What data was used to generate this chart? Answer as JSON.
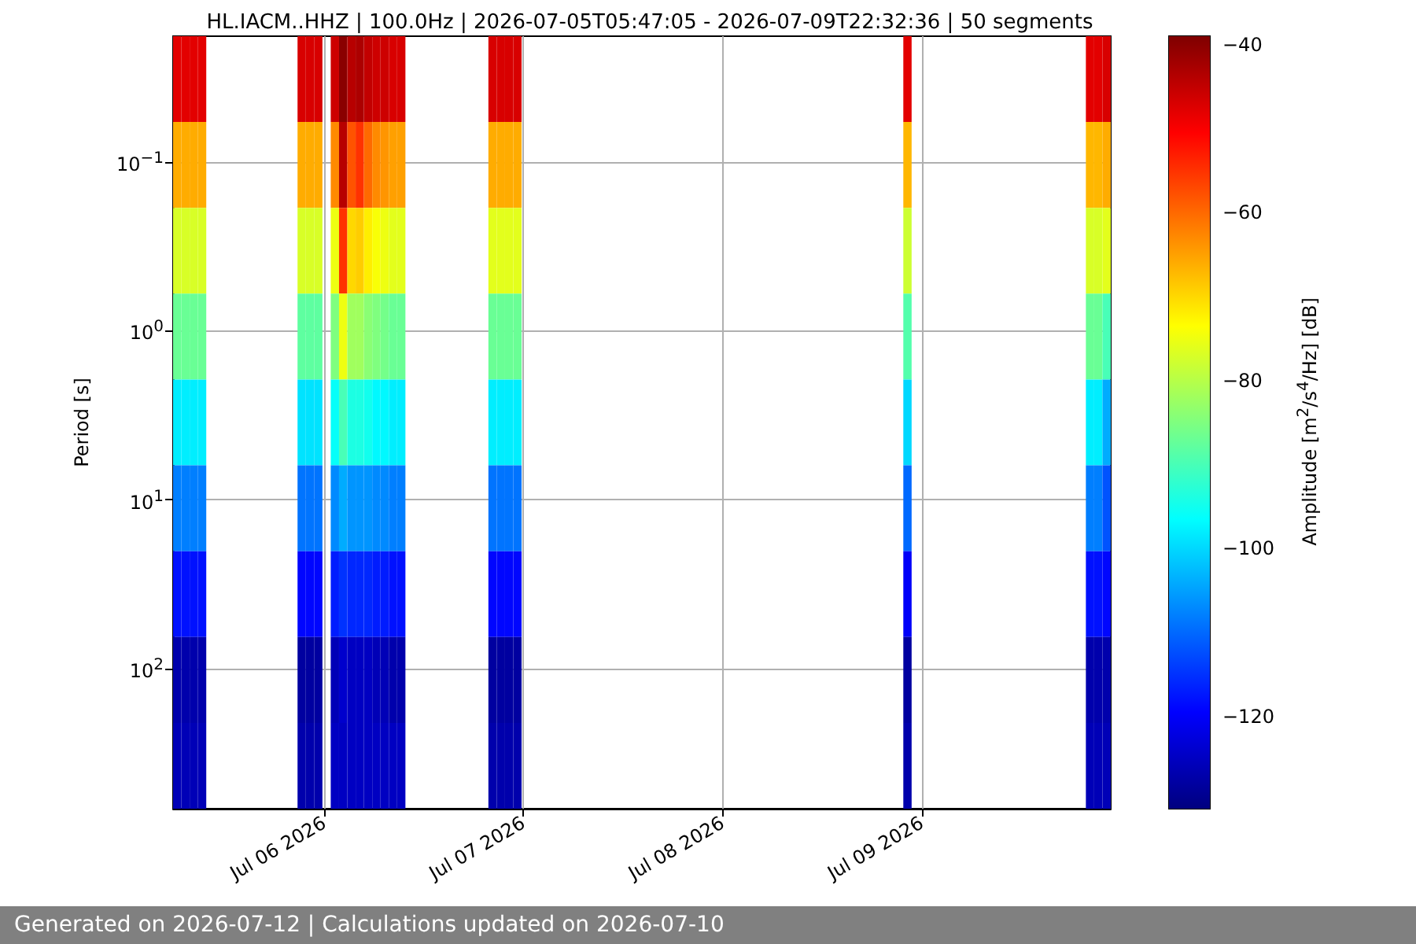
{
  "chart_data": {
    "type": "heatmap",
    "title": "HL.IACM..HHZ | 100.0Hz | 2026-07-05T05:47:05 - 2026-07-09T22:32:36 | 50 segments",
    "ylabel": "Period [s]",
    "clabel": "Amplitude [m$^{2}$/s$^{4}$/Hz] [dB]",
    "annotations": [
      "Generated on 2026-07-12 | Calculations updated on 2026-07-10"
    ],
    "x": [
      "2026-07-05T06:17",
      "2026-07-05T07:17",
      "2026-07-05T08:17",
      "2026-07-05T09:17",
      "2026-07-05T10:17",
      "2026-07-05T11:17",
      "2026-07-05T12:17",
      "2026-07-05T13:17",
      "2026-07-05T14:17",
      "2026-07-05T15:17",
      "2026-07-05T16:17",
      "2026-07-05T17:17",
      "2026-07-05T18:17",
      "2026-07-05T19:17",
      "2026-07-05T20:17",
      "2026-07-05T21:17",
      "2026-07-05T22:17",
      "2026-07-05T23:17",
      "2026-07-06T00:17",
      "2026-07-06T01:17",
      "2026-07-06T02:17",
      "2026-07-06T03:17",
      "2026-07-06T04:17",
      "2026-07-06T05:17",
      "2026-07-06T06:17",
      "2026-07-06T07:17",
      "2026-07-06T08:17",
      "2026-07-06T09:17",
      "2026-07-06T10:17",
      "2026-07-06T11:17",
      "2026-07-06T12:17",
      "2026-07-06T13:17",
      "2026-07-06T14:17",
      "2026-07-06T15:17",
      "2026-07-06T16:17",
      "2026-07-06T17:17",
      "2026-07-06T18:17",
      "2026-07-06T19:17",
      "2026-07-06T20:17",
      "2026-07-06T21:17",
      "2026-07-06T22:17",
      "2026-07-06T23:17",
      "2026-07-07T00:17",
      "2026-07-07T01:17",
      "2026-07-07T02:17",
      "2026-07-07T03:17",
      "2026-07-07T04:17",
      "2026-07-07T05:17",
      "2026-07-07T06:17",
      "2026-07-07T07:17",
      "2026-07-07T08:17",
      "2026-07-07T09:17",
      "2026-07-07T10:17",
      "2026-07-07T11:17",
      "2026-07-07T12:17",
      "2026-07-07T13:17",
      "2026-07-07T14:17",
      "2026-07-07T15:17",
      "2026-07-07T16:17",
      "2026-07-07T17:17",
      "2026-07-07T18:17",
      "2026-07-07T19:17",
      "2026-07-07T20:17",
      "2026-07-07T21:17",
      "2026-07-07T22:17",
      "2026-07-07T23:17",
      "2026-07-08T00:17",
      "2026-07-08T01:17",
      "2026-07-08T02:17",
      "2026-07-08T03:17",
      "2026-07-08T04:17",
      "2026-07-08T05:17",
      "2026-07-08T06:17",
      "2026-07-08T07:17",
      "2026-07-08T08:17",
      "2026-07-08T09:17",
      "2026-07-08T10:17",
      "2026-07-08T11:17",
      "2026-07-08T12:17",
      "2026-07-08T13:17",
      "2026-07-08T14:17",
      "2026-07-08T15:17",
      "2026-07-08T16:17",
      "2026-07-08T17:17",
      "2026-07-08T18:17",
      "2026-07-08T19:17",
      "2026-07-08T20:17",
      "2026-07-08T21:17",
      "2026-07-08T22:17",
      "2026-07-08T23:17",
      "2026-07-09T00:17",
      "2026-07-09T01:17",
      "2026-07-09T02:17",
      "2026-07-09T03:17",
      "2026-07-09T04:17",
      "2026-07-09T05:17",
      "2026-07-09T06:17",
      "2026-07-09T07:17",
      "2026-07-09T08:17",
      "2026-07-09T09:17",
      "2026-07-09T10:17",
      "2026-07-09T11:17",
      "2026-07-09T12:17",
      "2026-07-09T13:17",
      "2026-07-09T14:17",
      "2026-07-09T15:17",
      "2026-07-09T16:17",
      "2026-07-09T17:17",
      "2026-07-09T18:17",
      "2026-07-09T19:17",
      "2026-07-09T20:17",
      "2026-07-09T21:17",
      "2026-07-09T22:17"
    ],
    "cells": [
      [
        -48,
        -48,
        -48,
        -48,
        null,
        null,
        null,
        null,
        null,
        null,
        null,
        null,
        null,
        null,
        null,
        -47,
        -47,
        -47,
        null,
        -46,
        -40,
        -44,
        -43,
        -45,
        -46,
        -46,
        -47,
        -47,
        null,
        null,
        null,
        null,
        null,
        null,
        null,
        null,
        null,
        null,
        -47,
        -47,
        -47,
        -47,
        null,
        null,
        null,
        null,
        null,
        null,
        null,
        null,
        null,
        null,
        null,
        null,
        null,
        null,
        null,
        null,
        null,
        null,
        null,
        null,
        null,
        null,
        null,
        null,
        null,
        null,
        null,
        null,
        null,
        null,
        null,
        null,
        null,
        null,
        null,
        null,
        null,
        null,
        null,
        null,
        null,
        null,
        null,
        null,
        null,
        null,
        -48,
        null,
        null,
        null,
        null,
        null,
        null,
        null,
        null,
        null,
        null,
        null,
        null,
        null,
        null,
        null,
        null,
        null,
        null,
        null,
        null,
        null,
        -48,
        -48,
        -47
      ],
      [
        -66,
        -66,
        -66,
        -66,
        null,
        null,
        null,
        null,
        null,
        null,
        null,
        null,
        null,
        null,
        null,
        -66,
        -66,
        -66,
        null,
        -63,
        -44,
        -58,
        -55,
        -60,
        -63,
        -64,
        -65,
        -65,
        null,
        null,
        null,
        null,
        null,
        null,
        null,
        null,
        null,
        null,
        -66,
        -66,
        -66,
        -66,
        null,
        null,
        null,
        null,
        null,
        null,
        null,
        null,
        null,
        null,
        null,
        null,
        null,
        null,
        null,
        null,
        null,
        null,
        null,
        null,
        null,
        null,
        null,
        null,
        null,
        null,
        null,
        null,
        null,
        null,
        null,
        null,
        null,
        null,
        null,
        null,
        null,
        null,
        null,
        null,
        null,
        null,
        null,
        null,
        null,
        null,
        -67,
        null,
        null,
        null,
        null,
        null,
        null,
        null,
        null,
        null,
        null,
        null,
        null,
        null,
        null,
        null,
        null,
        null,
        null,
        null,
        null,
        null,
        -67,
        -67,
        -66
      ],
      [
        -77,
        -77,
        -77,
        -77,
        null,
        null,
        null,
        null,
        null,
        null,
        null,
        null,
        null,
        null,
        null,
        -77,
        -77,
        -77,
        null,
        -75,
        -55,
        -70,
        -69,
        -72,
        -74,
        -75,
        -76,
        -76,
        null,
        null,
        null,
        null,
        null,
        null,
        null,
        null,
        null,
        null,
        -76,
        -76,
        -76,
        -76,
        null,
        null,
        null,
        null,
        null,
        null,
        null,
        null,
        null,
        null,
        null,
        null,
        null,
        null,
        null,
        null,
        null,
        null,
        null,
        null,
        null,
        null,
        null,
        null,
        null,
        null,
        null,
        null,
        null,
        null,
        null,
        null,
        null,
        null,
        null,
        null,
        null,
        null,
        null,
        null,
        null,
        null,
        null,
        null,
        null,
        null,
        -78,
        null,
        null,
        null,
        null,
        null,
        null,
        null,
        null,
        null,
        null,
        null,
        null,
        null,
        null,
        null,
        null,
        null,
        null,
        null,
        null,
        null,
        -77,
        -77,
        -76
      ],
      [
        -87,
        -87,
        -87,
        -87,
        null,
        null,
        null,
        null,
        null,
        null,
        null,
        null,
        null,
        null,
        null,
        -88,
        -88,
        -88,
        null,
        -85,
        -75,
        -82,
        -82,
        -84,
        -85,
        -86,
        -87,
        -87,
        null,
        null,
        null,
        null,
        null,
        null,
        null,
        null,
        null,
        null,
        -87,
        -87,
        -87,
        -87,
        null,
        null,
        null,
        null,
        null,
        null,
        null,
        null,
        null,
        null,
        null,
        null,
        null,
        null,
        null,
        null,
        null,
        null,
        null,
        null,
        null,
        null,
        null,
        null,
        null,
        null,
        null,
        null,
        null,
        null,
        null,
        null,
        null,
        null,
        null,
        null,
        null,
        null,
        null,
        null,
        null,
        null,
        null,
        null,
        null,
        null,
        -89,
        null,
        null,
        null,
        null,
        null,
        null,
        null,
        null,
        null,
        null,
        null,
        null,
        null,
        null,
        null,
        null,
        null,
        null,
        null,
        null,
        null,
        -87,
        -87,
        -90
      ],
      [
        -98,
        -98,
        -98,
        -98,
        null,
        null,
        null,
        null,
        null,
        null,
        null,
        null,
        null,
        null,
        null,
        -99,
        -99,
        -99,
        null,
        -96,
        -90,
        -94,
        -94,
        -95,
        -97,
        -97,
        -98,
        -98,
        null,
        null,
        null,
        null,
        null,
        null,
        null,
        null,
        null,
        null,
        -98,
        -98,
        -98,
        -98,
        null,
        null,
        null,
        null,
        null,
        null,
        null,
        null,
        null,
        null,
        null,
        null,
        null,
        null,
        null,
        null,
        null,
        null,
        null,
        null,
        null,
        null,
        null,
        null,
        null,
        null,
        null,
        null,
        null,
        null,
        null,
        null,
        null,
        null,
        null,
        null,
        null,
        null,
        null,
        null,
        null,
        null,
        null,
        null,
        null,
        null,
        -100,
        null,
        null,
        null,
        null,
        null,
        null,
        null,
        null,
        null,
        null,
        null,
        null,
        null,
        null,
        null,
        null,
        null,
        null,
        null,
        null,
        null,
        -98,
        -98,
        -104
      ],
      [
        -108,
        -108,
        -108,
        -108,
        null,
        null,
        null,
        null,
        null,
        null,
        null,
        null,
        null,
        null,
        null,
        -109,
        -109,
        -109,
        null,
        -107,
        -104,
        -106,
        -106,
        -106,
        -107,
        -107,
        -108,
        -108,
        null,
        null,
        null,
        null,
        null,
        null,
        null,
        null,
        null,
        null,
        -109,
        -109,
        -109,
        -109,
        null,
        null,
        null,
        null,
        null,
        null,
        null,
        null,
        null,
        null,
        null,
        null,
        null,
        null,
        null,
        null,
        null,
        null,
        null,
        null,
        null,
        null,
        null,
        null,
        null,
        null,
        null,
        null,
        null,
        null,
        null,
        null,
        null,
        null,
        null,
        null,
        null,
        null,
        null,
        null,
        null,
        null,
        null,
        null,
        null,
        null,
        -110,
        null,
        null,
        null,
        null,
        null,
        null,
        null,
        null,
        null,
        null,
        null,
        null,
        null,
        null,
        null,
        null,
        null,
        null,
        null,
        null,
        null,
        -108,
        -108,
        -112
      ],
      [
        -118,
        -118,
        -118,
        -118,
        null,
        null,
        null,
        null,
        null,
        null,
        null,
        null,
        null,
        null,
        null,
        -119,
        -119,
        -119,
        null,
        -117,
        -115,
        -116,
        -116,
        -116,
        -117,
        -117,
        -118,
        -118,
        null,
        null,
        null,
        null,
        null,
        null,
        null,
        null,
        null,
        null,
        -119,
        -119,
        -119,
        -119,
        null,
        null,
        null,
        null,
        null,
        null,
        null,
        null,
        null,
        null,
        null,
        null,
        null,
        null,
        null,
        null,
        null,
        null,
        null,
        null,
        null,
        null,
        null,
        null,
        null,
        null,
        null,
        null,
        null,
        null,
        null,
        null,
        null,
        null,
        null,
        null,
        null,
        null,
        null,
        null,
        null,
        null,
        null,
        null,
        null,
        null,
        -120,
        null,
        null,
        null,
        null,
        null,
        null,
        null,
        null,
        null,
        null,
        null,
        null,
        null,
        null,
        null,
        null,
        null,
        null,
        null,
        null,
        null,
        -118,
        -118,
        -119
      ],
      [
        -127,
        -127,
        -127,
        -127,
        null,
        null,
        null,
        null,
        null,
        null,
        null,
        null,
        null,
        null,
        null,
        -128,
        -128,
        -128,
        null,
        -126,
        -124,
        -125,
        -125,
        -125,
        -126,
        -126,
        -127,
        -127,
        null,
        null,
        null,
        null,
        null,
        null,
        null,
        null,
        null,
        null,
        -128,
        -128,
        -128,
        -128,
        null,
        null,
        null,
        null,
        null,
        null,
        null,
        null,
        null,
        null,
        null,
        null,
        null,
        null,
        null,
        null,
        null,
        null,
        null,
        null,
        null,
        null,
        null,
        null,
        null,
        null,
        null,
        null,
        null,
        null,
        null,
        null,
        null,
        null,
        null,
        null,
        null,
        null,
        null,
        null,
        null,
        null,
        null,
        null,
        null,
        null,
        -128,
        null,
        null,
        null,
        null,
        null,
        null,
        null,
        null,
        null,
        null,
        null,
        null,
        null,
        null,
        null,
        null,
        null,
        null,
        null,
        null,
        null,
        -127,
        -127,
        -127
      ],
      [
        -126,
        -126,
        -126,
        -126,
        null,
        null,
        null,
        null,
        null,
        null,
        null,
        null,
        null,
        null,
        null,
        -127,
        -127,
        -127,
        null,
        -125,
        -125,
        -125,
        -125,
        -125,
        -125,
        -125,
        -125,
        -125,
        null,
        null,
        null,
        null,
        null,
        null,
        null,
        null,
        null,
        null,
        -127,
        -127,
        -127,
        -127,
        null,
        null,
        null,
        null,
        null,
        null,
        null,
        null,
        null,
        null,
        null,
        null,
        null,
        null,
        null,
        null,
        null,
        null,
        null,
        null,
        null,
        null,
        null,
        null,
        null,
        null,
        null,
        null,
        null,
        null,
        null,
        null,
        null,
        null,
        null,
        null,
        null,
        null,
        null,
        null,
        null,
        null,
        null,
        null,
        null,
        null,
        -127,
        null,
        null,
        null,
        null,
        null,
        null,
        null,
        null,
        null,
        null,
        null,
        null,
        null,
        null,
        null,
        null,
        null,
        null,
        null,
        null,
        null,
        -126,
        -126,
        -126
      ]
    ],
    "xlim": [
      "2026-07-05T05:47",
      "2026-07-09T22:47"
    ],
    "xticks": [
      {
        "value": "2026-07-06",
        "label": "Jul 06 2026"
      },
      {
        "value": "2026-07-07",
        "label": "Jul 07 2026"
      },
      {
        "value": "2026-07-08",
        "label": "Jul 08 2026"
      },
      {
        "value": "2026-07-09",
        "label": "Jul 09 2026"
      }
    ],
    "ylim": [
      676,
      0.018
    ],
    "log": "y",
    "yticks": [
      {
        "value": 0.1,
        "label": "10$^{−1}$"
      },
      {
        "value": 1,
        "label": "10$^{0}$"
      },
      {
        "value": 10,
        "label": "10$^{1}$"
      },
      {
        "value": 100,
        "label": "10$^{2}$"
      }
    ],
    "clim": [
      -131,
      -39
    ],
    "cticks": [
      {
        "value": -120,
        "label": "−120"
      },
      {
        "value": -100,
        "label": "−100"
      },
      {
        "value": -80,
        "label": "−80"
      },
      {
        "value": -60,
        "label": "−60"
      },
      {
        "value": -40,
        "label": "−40"
      }
    ],
    "grid": true
  }
}
